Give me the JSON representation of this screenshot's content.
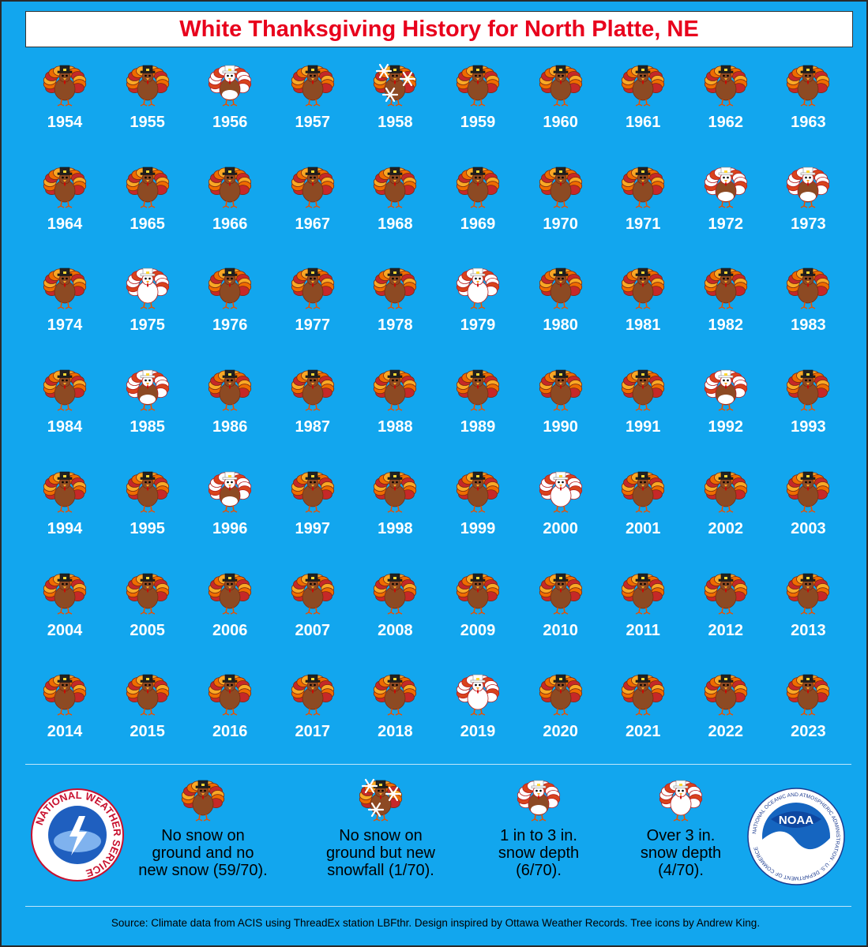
{
  "title": "White Thanksgiving History for North Platte, NE",
  "colors": {
    "background": "#12a6ee",
    "title": "#e8001c",
    "none": "#c0392b",
    "snowfall": "#c0392b",
    "light": "#ffffff",
    "heavy": "#ffffff"
  },
  "chart_data": {
    "type": "table",
    "title": "White Thanksgiving History for North Platte, NE",
    "categories": [
      {
        "key": "none",
        "label": "No snow on ground and no new snow (59/70).",
        "count": 59,
        "total": 70
      },
      {
        "key": "snowfall",
        "label": "No snow on ground but new snowfall (1/70).",
        "count": 1,
        "total": 70
      },
      {
        "key": "light",
        "label": "1 in to 3 in. snow depth (6/70).",
        "count": 6,
        "total": 70
      },
      {
        "key": "heavy",
        "label": "Over 3 in. snow depth (4/70).",
        "count": 4,
        "total": 70
      }
    ],
    "years": [
      {
        "year": "1954",
        "status": "none"
      },
      {
        "year": "1955",
        "status": "none"
      },
      {
        "year": "1956",
        "status": "light"
      },
      {
        "year": "1957",
        "status": "none"
      },
      {
        "year": "1958",
        "status": "snowfall"
      },
      {
        "year": "1959",
        "status": "none"
      },
      {
        "year": "1960",
        "status": "none"
      },
      {
        "year": "1961",
        "status": "none"
      },
      {
        "year": "1962",
        "status": "none"
      },
      {
        "year": "1963",
        "status": "none"
      },
      {
        "year": "1964",
        "status": "none"
      },
      {
        "year": "1965",
        "status": "none"
      },
      {
        "year": "1966",
        "status": "none"
      },
      {
        "year": "1967",
        "status": "none"
      },
      {
        "year": "1968",
        "status": "none"
      },
      {
        "year": "1969",
        "status": "none"
      },
      {
        "year": "1970",
        "status": "none"
      },
      {
        "year": "1971",
        "status": "none"
      },
      {
        "year": "1972",
        "status": "light"
      },
      {
        "year": "1973",
        "status": "light"
      },
      {
        "year": "1974",
        "status": "none"
      },
      {
        "year": "1975",
        "status": "heavy"
      },
      {
        "year": "1976",
        "status": "none"
      },
      {
        "year": "1977",
        "status": "none"
      },
      {
        "year": "1978",
        "status": "none"
      },
      {
        "year": "1979",
        "status": "heavy"
      },
      {
        "year": "1980",
        "status": "none"
      },
      {
        "year": "1981",
        "status": "none"
      },
      {
        "year": "1982",
        "status": "none"
      },
      {
        "year": "1983",
        "status": "none"
      },
      {
        "year": "1984",
        "status": "none"
      },
      {
        "year": "1985",
        "status": "light"
      },
      {
        "year": "1986",
        "status": "none"
      },
      {
        "year": "1987",
        "status": "none"
      },
      {
        "year": "1988",
        "status": "none"
      },
      {
        "year": "1989",
        "status": "none"
      },
      {
        "year": "1990",
        "status": "none"
      },
      {
        "year": "1991",
        "status": "none"
      },
      {
        "year": "1992",
        "status": "light"
      },
      {
        "year": "1993",
        "status": "none"
      },
      {
        "year": "1994",
        "status": "none"
      },
      {
        "year": "1995",
        "status": "none"
      },
      {
        "year": "1996",
        "status": "light"
      },
      {
        "year": "1997",
        "status": "none"
      },
      {
        "year": "1998",
        "status": "none"
      },
      {
        "year": "1999",
        "status": "none"
      },
      {
        "year": "2000",
        "status": "heavy"
      },
      {
        "year": "2001",
        "status": "none"
      },
      {
        "year": "2002",
        "status": "none"
      },
      {
        "year": "2003",
        "status": "none"
      },
      {
        "year": "2004",
        "status": "none"
      },
      {
        "year": "2005",
        "status": "none"
      },
      {
        "year": "2006",
        "status": "none"
      },
      {
        "year": "2007",
        "status": "none"
      },
      {
        "year": "2008",
        "status": "none"
      },
      {
        "year": "2009",
        "status": "none"
      },
      {
        "year": "2010",
        "status": "none"
      },
      {
        "year": "2011",
        "status": "none"
      },
      {
        "year": "2012",
        "status": "none"
      },
      {
        "year": "2013",
        "status": "none"
      },
      {
        "year": "2014",
        "status": "none"
      },
      {
        "year": "2015",
        "status": "none"
      },
      {
        "year": "2016",
        "status": "none"
      },
      {
        "year": "2017",
        "status": "none"
      },
      {
        "year": "2018",
        "status": "none"
      },
      {
        "year": "2019",
        "status": "heavy"
      },
      {
        "year": "2020",
        "status": "none"
      },
      {
        "year": "2021",
        "status": "none"
      },
      {
        "year": "2022",
        "status": "none"
      },
      {
        "year": "2023",
        "status": "none"
      }
    ]
  },
  "legend": {
    "none_lines": [
      "No snow on",
      "ground and no",
      "new snow (59/70)."
    ],
    "snowfall_lines": [
      "No snow on",
      "ground but new",
      "snowfall (1/70)."
    ],
    "light_lines": [
      "1 in to 3 in.",
      "snow depth",
      "(6/70)."
    ],
    "heavy_lines": [
      "Over 3 in.",
      "snow depth",
      "(4/70)."
    ]
  },
  "logos": {
    "nws": "NATIONAL WEATHER SERVICE",
    "noaa": "NOAA",
    "noaa_ring": "NATIONAL OCEANIC AND ATMOSPHERIC ADMINISTRATION · U.S. DEPARTMENT OF COMMERCE"
  },
  "source": "Source: Climate data from ACIS using ThreadEx station LBFthr. Design inspired by Ottawa Weather Records. Tree icons by Andrew King."
}
